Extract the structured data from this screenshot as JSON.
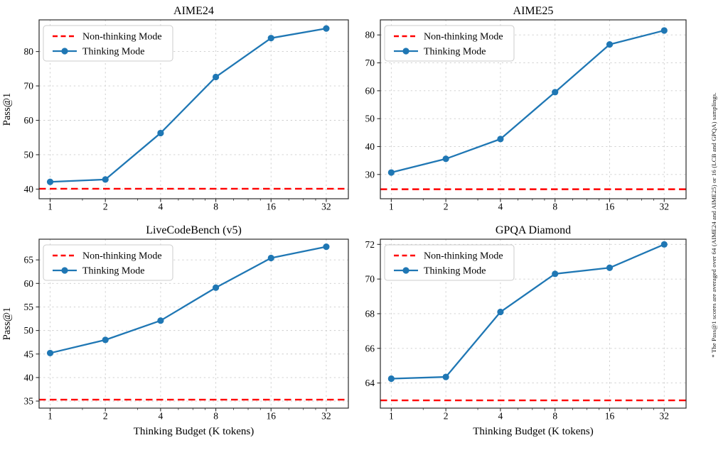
{
  "figure": {
    "background": "#ffffff",
    "side_note": "* The Pass@1 scores are averaged over 64 (AIME24 and AIME25) or 16 (LCB and GPQA) samplings."
  },
  "style": {
    "thinking_color": "#1f77b4",
    "non_thinking_color": "#ff0000",
    "grid_color": "#cccccc",
    "spine_color": "#2a2a2a",
    "text_color": "#000000",
    "legend_bg": "#ffffff",
    "legend_border": "#cccccc"
  },
  "legend": {
    "non_thinking_label": "Non-thinking Mode",
    "thinking_label": "Thinking Mode"
  },
  "shared_axes": {
    "xlabel": "Thinking Budget (K tokens)",
    "ylabel": "Pass@1",
    "x_scale": "log2",
    "x_ticks": [
      1,
      2,
      4,
      8,
      16,
      32
    ],
    "x_minor_ticks": [
      1.5,
      3,
      5,
      6,
      7,
      10,
      12,
      14,
      20,
      24,
      28
    ],
    "xlim_log2": [
      -0.2,
      5.4
    ],
    "grid": true,
    "legend_position": "upper left"
  },
  "chart_data": [
    {
      "type": "line",
      "title": "AIME24",
      "x": [
        1,
        2,
        4,
        8,
        16,
        32
      ],
      "series": [
        {
          "name": "Thinking Mode",
          "values": [
            42.1,
            42.8,
            56.3,
            72.6,
            83.9,
            86.7
          ]
        },
        {
          "name": "Non-thinking Mode",
          "baseline": 40.1
        }
      ],
      "y_ticks": [
        40,
        50,
        60,
        70,
        80
      ],
      "ylim": [
        37.2,
        89.2
      ],
      "show_xlabel": false,
      "show_ylabel": true
    },
    {
      "type": "line",
      "title": "AIME25",
      "x": [
        1,
        2,
        4,
        8,
        16,
        32
      ],
      "series": [
        {
          "name": "Thinking Mode",
          "values": [
            30.7,
            35.6,
            42.7,
            59.5,
            76.6,
            81.6
          ]
        },
        {
          "name": "Non-thinking Mode",
          "baseline": 24.7
        }
      ],
      "y_ticks": [
        30,
        40,
        50,
        60,
        70,
        80
      ],
      "ylim": [
        21.3,
        85.4
      ],
      "show_xlabel": false,
      "show_ylabel": false
    },
    {
      "type": "line",
      "title": "LiveCodeBench (v5)",
      "x": [
        1,
        2,
        4,
        8,
        16,
        32
      ],
      "series": [
        {
          "name": "Thinking Mode",
          "values": [
            45.2,
            48.0,
            52.1,
            59.1,
            65.4,
            67.8
          ]
        },
        {
          "name": "Non-thinking Mode",
          "baseline": 35.3
        }
      ],
      "y_ticks": [
        35,
        40,
        45,
        50,
        55,
        60,
        65
      ],
      "ylim": [
        33.5,
        69.4
      ],
      "show_xlabel": true,
      "show_ylabel": true
    },
    {
      "type": "line",
      "title": "GPQA Diamond",
      "x": [
        1,
        2,
        4,
        8,
        16,
        32
      ],
      "series": [
        {
          "name": "Thinking Mode",
          "values": [
            64.25,
            64.35,
            68.1,
            70.3,
            70.65,
            72.0
          ]
        },
        {
          "name": "Non-thinking Mode",
          "baseline": 63.0
        }
      ],
      "y_ticks": [
        64,
        66,
        68,
        70,
        72
      ],
      "ylim": [
        62.55,
        72.3
      ],
      "show_xlabel": true,
      "show_ylabel": false
    }
  ]
}
